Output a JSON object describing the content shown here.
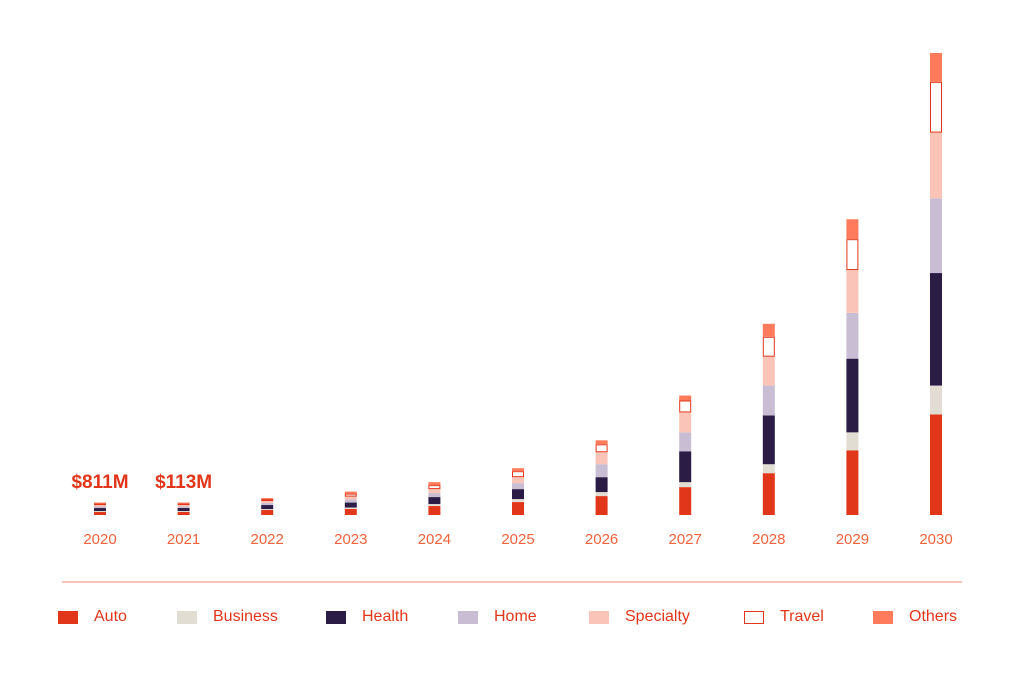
{
  "chart_data": {
    "type": "bar",
    "stacked": true,
    "categories": [
      "2020",
      "2021",
      "2022",
      "2023",
      "2024",
      "2025",
      "2026",
      "2027",
      "2028",
      "2029",
      "2030"
    ],
    "annotations": [
      {
        "category": "2020",
        "text": "$811M"
      },
      {
        "category": "2021",
        "text": "$113M"
      }
    ],
    "series": [
      {
        "name": "Auto",
        "color": "#e2361a",
        "values": [
          3,
          3,
          5,
          6,
          9,
          13,
          19,
          28,
          42,
          65,
          101
        ]
      },
      {
        "name": "Business",
        "color": "#e2ddd2",
        "values": [
          1,
          1,
          1,
          1.5,
          2,
          3,
          4,
          5,
          9,
          18,
          29
        ]
      },
      {
        "name": "Health",
        "color": "#2a1c45",
        "values": [
          3,
          3,
          4,
          5,
          7,
          10,
          15,
          31,
          49,
          74,
          113
        ]
      },
      {
        "name": "Home",
        "color": "#c8bdd3",
        "values": [
          1.5,
          1.5,
          2,
          3,
          4,
          6,
          13,
          19,
          30,
          46,
          75
        ]
      },
      {
        "name": "Specialty",
        "color": "#fac4b9",
        "values": [
          1.5,
          1.5,
          2,
          3,
          4,
          6,
          12,
          20,
          29,
          43,
          66
        ]
      },
      {
        "name": "Travel",
        "color": "#ffffff",
        "border": "#e2361a",
        "values": [
          1.5,
          1.5,
          2,
          3,
          4,
          6,
          8,
          12,
          20,
          31,
          51
        ]
      },
      {
        "name": "Others",
        "color": "#ff7b5c",
        "values": [
          1,
          1,
          1,
          2,
          3,
          3,
          4,
          5,
          13,
          20,
          29
        ]
      }
    ],
    "ylim": [
      0,
      470
    ],
    "grid": false,
    "legend_position": "bottom"
  },
  "colors": {
    "accent": "#e2361a",
    "tick_label": "#f0633c",
    "divider": "#f08a70"
  }
}
